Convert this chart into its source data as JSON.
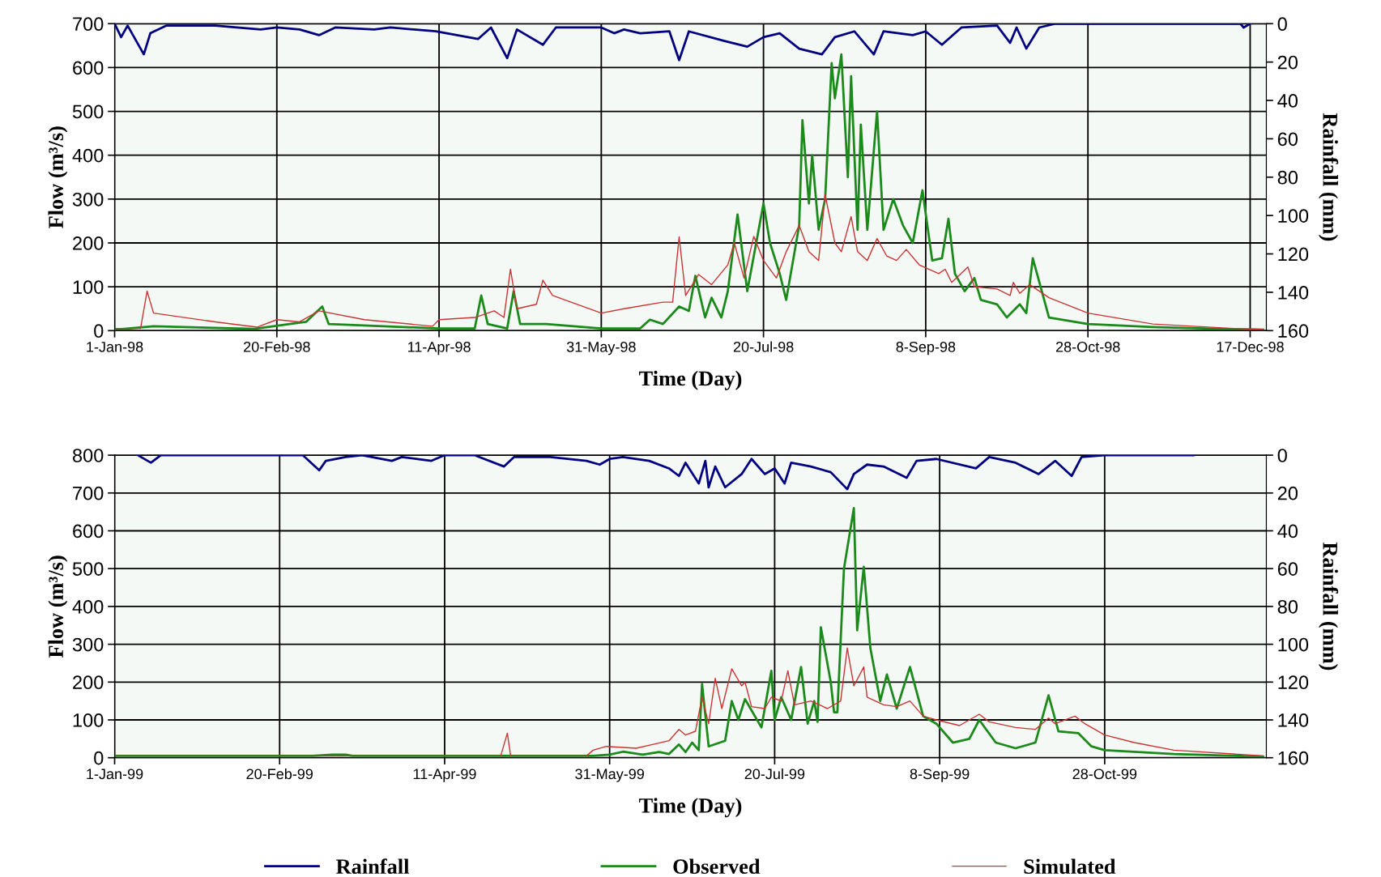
{
  "chart_data": [
    {
      "type": "line",
      "xlabel": "Time (Day)",
      "ylabel": "Flow (m³/s)",
      "y2label": "Rainfall (mm)",
      "grid": true,
      "legend": false,
      "xlim": [
        "1998-01-01",
        "1998-12-22"
      ],
      "xticks": [
        {
          "value": "1998-01-01",
          "label": "1-Jan-98"
        },
        {
          "value": "1998-02-20",
          "label": "20-Feb-98"
        },
        {
          "value": "1998-04-11",
          "label": "11-Apr-98"
        },
        {
          "value": "1998-05-31",
          "label": "31-May-98"
        },
        {
          "value": "1998-07-20",
          "label": "20-Jul-98"
        },
        {
          "value": "1998-09-08",
          "label": "8-Sep-98"
        },
        {
          "value": "1998-10-28",
          "label": "28-Oct-98"
        },
        {
          "value": "1998-12-17",
          "label": "17-Dec-98"
        }
      ],
      "ylim": [
        0,
        700
      ],
      "yticks": [
        0,
        100,
        200,
        300,
        400,
        500,
        600,
        700
      ],
      "y2lim": [
        160,
        0
      ],
      "y2ticks": [
        0,
        20,
        40,
        60,
        80,
        100,
        120,
        140,
        160
      ],
      "series": [
        {
          "color": "#000080",
          "axis": "y2",
          "x": [
            "1998-01-01",
            "1998-01-03",
            "1998-01-05",
            "1998-01-10",
            "1998-01-12",
            "1998-01-17",
            "1998-02-01",
            "1998-02-15",
            "1998-02-20",
            "1998-02-27",
            "1998-03-05",
            "1998-03-10",
            "1998-03-22",
            "1998-03-27",
            "1998-04-10",
            "1998-04-23",
            "1998-04-27",
            "1998-05-02",
            "1998-05-05",
            "1998-05-13",
            "1998-05-17",
            "1998-05-31",
            "1998-06-04",
            "1998-06-07",
            "1998-06-12",
            "1998-06-21",
            "1998-06-24",
            "1998-06-27",
            "1998-07-08",
            "1998-07-15",
            "1998-07-20",
            "1998-07-25",
            "1998-07-31",
            "1998-08-07",
            "1998-08-11",
            "1998-08-17",
            "1998-08-23",
            "1998-08-26",
            "1998-09-04",
            "1998-09-08",
            "1998-09-13",
            "1998-09-19",
            "1998-09-30",
            "1998-10-04",
            "1998-10-06",
            "1998-10-09",
            "1998-10-13",
            "1998-10-18",
            "1998-12-14",
            "1998-12-15",
            "1998-12-17"
          ],
          "values": [
            0,
            7,
            1,
            16,
            5,
            1,
            1,
            3,
            2,
            3,
            6,
            2,
            3,
            2,
            4,
            8,
            2,
            18,
            3,
            11,
            2,
            2,
            5,
            3,
            5,
            4,
            19,
            4,
            9,
            12,
            7,
            5,
            13,
            16,
            7,
            4,
            16,
            4,
            6,
            4,
            11,
            2,
            1,
            10,
            2,
            13,
            2,
            0,
            0,
            2,
            0
          ]
        },
        {
          "color": "#1a8a1a",
          "x": [
            "1998-01-01",
            "1998-01-13",
            "1998-02-13",
            "1998-03-01",
            "1998-03-06",
            "1998-03-08",
            "1998-04-11",
            "1998-04-22",
            "1998-04-24",
            "1998-04-26",
            "1998-05-02",
            "1998-05-04",
            "1998-05-06",
            "1998-05-14",
            "1998-05-31",
            "1998-06-12",
            "1998-06-15",
            "1998-06-19",
            "1998-06-24",
            "1998-06-27",
            "1998-06-29",
            "1998-07-02",
            "1998-07-04",
            "1998-07-07",
            "1998-07-09",
            "1998-07-12",
            "1998-07-15",
            "1998-07-17",
            "1998-07-20",
            "1998-07-22",
            "1998-07-25",
            "1998-07-27",
            "1998-07-31",
            "1998-08-01",
            "1998-08-03",
            "1998-08-04",
            "1998-08-06",
            "1998-08-08",
            "1998-08-10",
            "1998-08-11",
            "1998-08-13",
            "1998-08-15",
            "1998-08-16",
            "1998-08-18",
            "1998-08-19",
            "1998-08-21",
            "1998-08-24",
            "1998-08-26",
            "1998-08-29",
            "1998-09-01",
            "1998-09-04",
            "1998-09-07",
            "1998-09-10",
            "1998-09-13",
            "1998-09-15",
            "1998-09-17",
            "1998-09-20",
            "1998-09-23",
            "1998-09-25",
            "1998-09-30",
            "1998-10-03",
            "1998-10-07",
            "1998-10-09",
            "1998-10-11",
            "1998-10-16",
            "1998-10-28",
            "1998-11-17",
            "1998-12-12",
            "1998-12-21"
          ],
          "values": [
            2,
            10,
            4,
            20,
            55,
            15,
            5,
            5,
            80,
            15,
            5,
            90,
            15,
            15,
            5,
            5,
            25,
            15,
            55,
            45,
            125,
            30,
            75,
            30,
            90,
            265,
            90,
            170,
            290,
            200,
            130,
            70,
            240,
            480,
            290,
            400,
            230,
            300,
            610,
            530,
            630,
            350,
            580,
            230,
            470,
            230,
            500,
            230,
            300,
            240,
            200,
            320,
            160,
            165,
            255,
            130,
            90,
            120,
            70,
            60,
            30,
            60,
            40,
            165,
            30,
            15,
            8,
            3,
            2
          ]
        },
        {
          "color": "#cc3333",
          "x": [
            "1998-01-01",
            "1998-01-09",
            "1998-01-11",
            "1998-01-13",
            "1998-02-01",
            "1998-02-14",
            "1998-02-20",
            "1998-02-27",
            "1998-03-05",
            "1998-03-19",
            "1998-04-09",
            "1998-04-11",
            "1998-04-22",
            "1998-04-28",
            "1998-05-01",
            "1998-05-03",
            "1998-05-05",
            "1998-05-11",
            "1998-05-13",
            "1998-05-16",
            "1998-05-31",
            "1998-06-07",
            "1998-06-19",
            "1998-06-22",
            "1998-06-24",
            "1998-06-26",
            "1998-06-30",
            "1998-07-04",
            "1998-07-09",
            "1998-07-11",
            "1998-07-14",
            "1998-07-17",
            "1998-07-20",
            "1998-07-24",
            "1998-07-27",
            "1998-07-31",
            "1998-08-03",
            "1998-08-06",
            "1998-08-08",
            "1998-08-11",
            "1998-08-13",
            "1998-08-16",
            "1998-08-18",
            "1998-08-21",
            "1998-08-24",
            "1998-08-27",
            "1998-08-30",
            "1998-09-02",
            "1998-09-06",
            "1998-09-12",
            "1998-09-14",
            "1998-09-16",
            "1998-09-21",
            "1998-09-23",
            "1998-09-30",
            "1998-10-04",
            "1998-10-05",
            "1998-10-07",
            "1998-10-10",
            "1998-10-16",
            "1998-10-28",
            "1998-11-17",
            "1998-12-12",
            "1998-12-21"
          ],
          "values": [
            5,
            5,
            90,
            40,
            20,
            8,
            25,
            20,
            45,
            25,
            10,
            25,
            30,
            45,
            30,
            140,
            50,
            60,
            115,
            80,
            40,
            50,
            65,
            65,
            214,
            80,
            128,
            105,
            150,
            200,
            120,
            215,
            160,
            120,
            180,
            240,
            180,
            160,
            310,
            200,
            180,
            260,
            180,
            160,
            210,
            170,
            160,
            185,
            150,
            130,
            140,
            110,
            145,
            100,
            95,
            80,
            110,
            85,
            105,
            75,
            40,
            15,
            5,
            3
          ]
        }
      ]
    },
    {
      "type": "line",
      "xlabel": "Time (Day)",
      "ylabel": "Flow (m³/s)",
      "y2label": "Rainfall (mm)",
      "grid": true,
      "legend": "bottom",
      "xlim": [
        "1999-01-01",
        "1999-12-16"
      ],
      "xticks": [
        {
          "value": "1999-01-01",
          "label": "1-Jan-99"
        },
        {
          "value": "1999-02-20",
          "label": "20-Feb-99"
        },
        {
          "value": "1999-04-11",
          "label": "11-Apr-99"
        },
        {
          "value": "1999-05-31",
          "label": "31-May-99"
        },
        {
          "value": "1999-07-20",
          "label": "20-Jul-99"
        },
        {
          "value": "1999-09-08",
          "label": "8-Sep-99"
        },
        {
          "value": "1999-10-28",
          "label": "28-Oct-99"
        }
      ],
      "ylim": [
        0,
        800
      ],
      "yticks": [
        0,
        100,
        200,
        300,
        400,
        500,
        600,
        700,
        800
      ],
      "y2lim": [
        160,
        0
      ],
      "y2ticks": [
        0,
        20,
        40,
        60,
        80,
        100,
        120,
        140,
        160
      ],
      "series": [
        {
          "name": "Rainfall",
          "color": "#000080",
          "axis": "y2",
          "x": [
            "1999-01-08",
            "1999-01-12",
            "1999-01-15",
            "1999-01-31",
            "1999-02-27",
            "1999-03-04",
            "1999-03-06",
            "1999-03-12",
            "1999-03-17",
            "1999-03-26",
            "1999-03-29",
            "1999-04-07",
            "1999-04-11",
            "1999-04-20",
            "1999-04-29",
            "1999-05-02",
            "1999-05-13",
            "1999-05-24",
            "1999-05-28",
            "1999-05-31",
            "1999-06-04",
            "1999-06-12",
            "1999-06-18",
            "1999-06-21",
            "1999-06-23",
            "1999-06-27",
            "1999-06-29",
            "1999-06-30",
            "1999-07-02",
            "1999-07-05",
            "1999-07-10",
            "1999-07-13",
            "1999-07-17",
            "1999-07-20",
            "1999-07-23",
            "1999-07-25",
            "1999-07-31",
            "1999-08-06",
            "1999-08-11",
            "1999-08-13",
            "1999-08-17",
            "1999-08-22",
            "1999-08-29",
            "1999-09-01",
            "1999-09-07",
            "1999-09-19",
            "1999-09-23",
            "1999-10-01",
            "1999-10-08",
            "1999-10-13",
            "1999-10-18",
            "1999-10-21",
            "1999-10-28",
            "1999-11-24"
          ],
          "values": [
            0,
            4,
            0,
            0,
            0,
            8,
            3,
            1,
            0,
            3,
            1,
            3,
            0,
            0,
            6,
            1,
            1,
            3,
            5,
            2,
            1,
            3,
            7,
            11,
            4,
            15,
            3,
            17,
            6,
            17,
            10,
            2,
            10,
            7,
            15,
            4,
            6,
            9,
            18,
            10,
            5,
            6,
            12,
            3,
            2,
            7,
            1,
            4,
            10,
            3,
            11,
            1,
            0,
            0
          ]
        },
        {
          "name": "Observed",
          "color": "#1a8a1a",
          "x": [
            "1999-01-01",
            "1999-03-02",
            "1999-03-08",
            "1999-03-12",
            "1999-03-14",
            "1999-05-26",
            "1999-05-31",
            "1999-06-04",
            "1999-06-10",
            "1999-06-15",
            "1999-06-18",
            "1999-06-21",
            "1999-06-23",
            "1999-06-25",
            "1999-06-27",
            "1999-06-28",
            "1999-06-30",
            "1999-07-05",
            "1999-07-07",
            "1999-07-09",
            "1999-07-11",
            "1999-07-16",
            "1999-07-19",
            "1999-07-20",
            "1999-07-22",
            "1999-07-25",
            "1999-07-28",
            "1999-07-30",
            "1999-08-01",
            "1999-08-02",
            "1999-08-03",
            "1999-08-06",
            "1999-08-07",
            "1999-08-08",
            "1999-08-10",
            "1999-08-13",
            "1999-08-14",
            "1999-08-16",
            "1999-08-18",
            "1999-08-21",
            "1999-08-23",
            "1999-08-26",
            "1999-08-30",
            "1999-09-03",
            "1999-09-07",
            "1999-09-12",
            "1999-09-17",
            "1999-09-20",
            "1999-09-25",
            "1999-10-01",
            "1999-10-07",
            "1999-10-11",
            "1999-10-14",
            "1999-10-20",
            "1999-10-24",
            "1999-10-28",
            "1999-11-18",
            "1999-12-15"
          ],
          "values": [
            5,
            5,
            8,
            8,
            5,
            5,
            8,
            16,
            8,
            15,
            10,
            35,
            15,
            40,
            20,
            195,
            30,
            45,
            150,
            100,
            155,
            80,
            230,
            100,
            160,
            100,
            240,
            90,
            150,
            95,
            345,
            200,
            120,
            120,
            500,
            660,
            337,
            505,
            290,
            150,
            220,
            130,
            240,
            110,
            90,
            40,
            50,
            100,
            40,
            25,
            40,
            165,
            70,
            65,
            30,
            20,
            10,
            3
          ]
        },
        {
          "name": "Simulated",
          "color": "#cc3333",
          "x": [
            "1999-01-01",
            "1999-04-28",
            "1999-04-30",
            "1999-05-01",
            "1999-05-24",
            "1999-05-26",
            "1999-05-30",
            "1999-06-08",
            "1999-06-13",
            "1999-06-18",
            "1999-06-21",
            "1999-06-23",
            "1999-06-26",
            "1999-06-28",
            "1999-06-30",
            "1999-07-02",
            "1999-07-04",
            "1999-07-07",
            "1999-07-10",
            "1999-07-11",
            "1999-07-13",
            "1999-07-17",
            "1999-07-19",
            "1999-07-22",
            "1999-07-24",
            "1999-07-26",
            "1999-07-31",
            "1999-08-05",
            "1999-08-09",
            "1999-08-11",
            "1999-08-13",
            "1999-08-16",
            "1999-08-17",
            "1999-08-22",
            "1999-08-26",
            "1999-08-30",
            "1999-09-03",
            "1999-09-07",
            "1999-09-14",
            "1999-09-20",
            "1999-09-23",
            "1999-10-01",
            "1999-10-07",
            "1999-10-11",
            "1999-10-13",
            "1999-10-19",
            "1999-10-22",
            "1999-10-28",
            "1999-11-06",
            "1999-11-18",
            "1999-12-15"
          ],
          "values": [
            5,
            5,
            65,
            5,
            5,
            20,
            30,
            25,
            35,
            45,
            75,
            60,
            70,
            160,
            90,
            210,
            130,
            235,
            190,
            200,
            135,
            130,
            160,
            150,
            230,
            140,
            150,
            130,
            150,
            290,
            190,
            240,
            160,
            140,
            135,
            150,
            110,
            100,
            85,
            115,
            95,
            80,
            75,
            105,
            90,
            110,
            90,
            60,
            40,
            20,
            5
          ]
        }
      ]
    }
  ]
}
